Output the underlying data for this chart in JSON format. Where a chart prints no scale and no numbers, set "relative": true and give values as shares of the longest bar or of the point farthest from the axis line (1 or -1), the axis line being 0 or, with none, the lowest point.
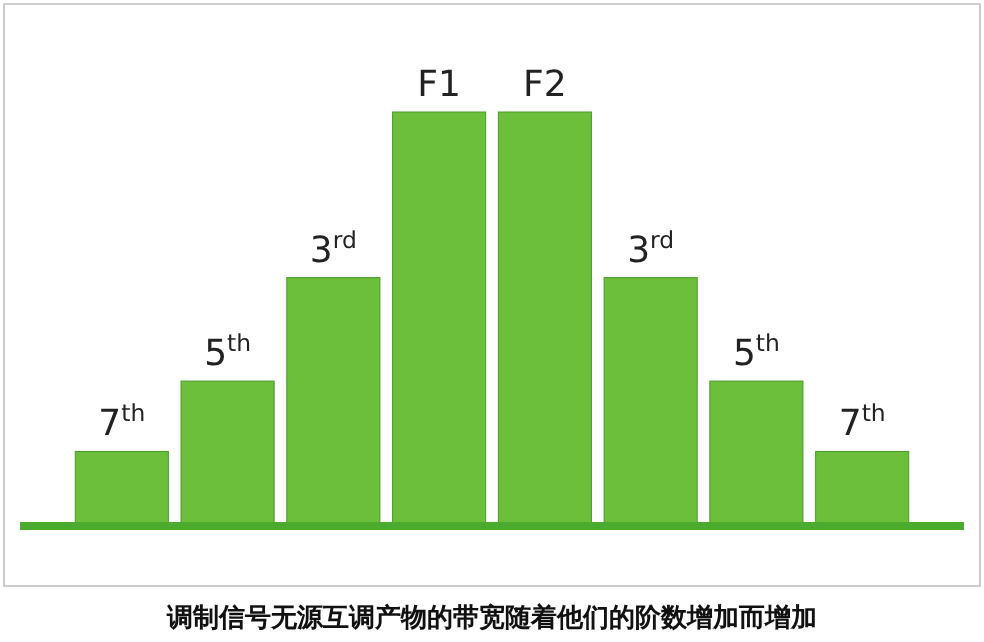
{
  "chart_data": {
    "type": "bar",
    "relative": true,
    "categories": [
      "7$^{th}$",
      "5$^{th}$",
      "3$^{rd}$",
      "F1",
      "F2",
      "3$^{rd}$",
      "5$^{th}$",
      "7$^{th}$"
    ],
    "values": [
      0.18,
      0.35,
      0.6,
      1,
      1,
      0.6,
      0.35,
      0.18
    ],
    "color": "#6cbf3a",
    "annotations": [
      "调制信号无源互调产物的带宽随着他们的阶数增加而增加"
    ]
  }
}
